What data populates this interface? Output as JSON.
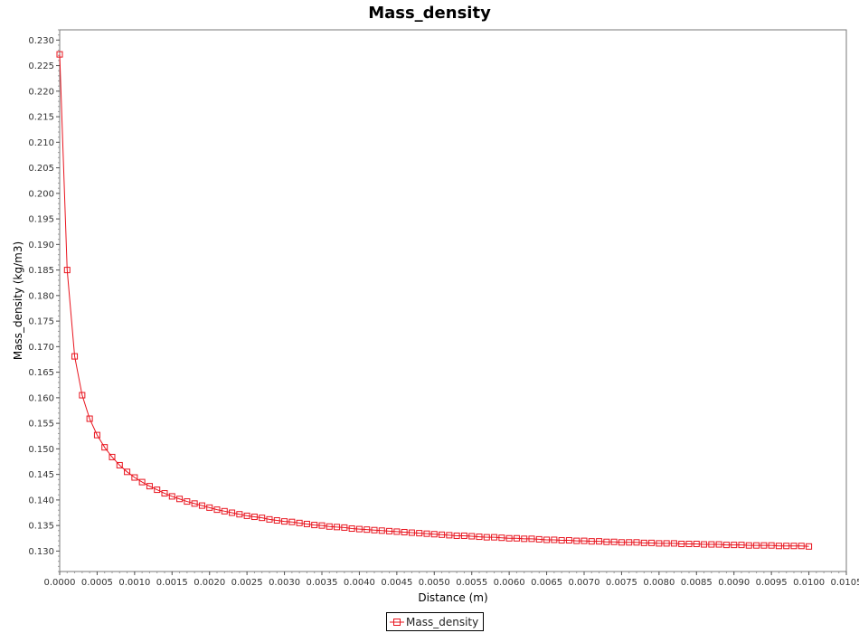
{
  "chart_data": {
    "type": "line",
    "title": "Mass_density",
    "xlabel": "Distance (m)",
    "ylabel": "Mass_density (kg/m3)",
    "xlim": [
      0,
      0.0105
    ],
    "ylim": [
      0.126,
      0.232
    ],
    "x_ticks": [
      "0.0000",
      "0.0005",
      "0.0010",
      "0.0015",
      "0.0020",
      "0.0025",
      "0.0030",
      "0.0035",
      "0.0040",
      "0.0045",
      "0.0050",
      "0.0055",
      "0.0060",
      "0.0065",
      "0.0070",
      "0.0075",
      "0.0080",
      "0.0085",
      "0.0090",
      "0.0095",
      "0.0100",
      "0.0105"
    ],
    "y_ticks": [
      "0.130",
      "0.135",
      "0.140",
      "0.145",
      "0.150",
      "0.155",
      "0.160",
      "0.165",
      "0.170",
      "0.175",
      "0.180",
      "0.185",
      "0.190",
      "0.195",
      "0.200",
      "0.205",
      "0.210",
      "0.215",
      "0.220",
      "0.225",
      "0.230"
    ],
    "legend_position": "bottom-center",
    "marker": "square",
    "series": [
      {
        "name": "Mass_density",
        "color": "#e8141e",
        "x": [
          0,
          0.0001,
          0.0002,
          0.0003,
          0.0004,
          0.0005,
          0.0006,
          0.0007,
          0.0008,
          0.0009,
          0.001,
          0.0011,
          0.0012,
          0.0013,
          0.0014,
          0.0015,
          0.0016,
          0.0017,
          0.0018,
          0.0019,
          0.002,
          0.0021,
          0.0022,
          0.0023,
          0.0024,
          0.0025,
          0.0026,
          0.0027,
          0.0028,
          0.0029,
          0.003,
          0.0031,
          0.0032,
          0.0033,
          0.0034,
          0.0035,
          0.0036,
          0.0037,
          0.0038,
          0.0039,
          0.004,
          0.0041,
          0.0042,
          0.0043,
          0.0044,
          0.0045,
          0.0046,
          0.0047,
          0.0048,
          0.0049,
          0.005,
          0.0051,
          0.0052,
          0.0053,
          0.0054,
          0.0055,
          0.0056,
          0.0057,
          0.0058,
          0.0059,
          0.006,
          0.0061,
          0.0062,
          0.0063,
          0.0064,
          0.0065,
          0.0066,
          0.0067,
          0.0068,
          0.0069,
          0.007,
          0.0071,
          0.0072,
          0.0073,
          0.0074,
          0.0075,
          0.0076,
          0.0077,
          0.0078,
          0.0079,
          0.008,
          0.0081,
          0.0082,
          0.0083,
          0.0084,
          0.0085,
          0.0086,
          0.0087,
          0.0088,
          0.0089,
          0.009,
          0.0091,
          0.0092,
          0.0093,
          0.0094,
          0.0095,
          0.0096,
          0.0097,
          0.0098,
          0.0099,
          0.01
        ],
        "values": [
          0.2272,
          0.185,
          0.1681,
          0.1605,
          0.1559,
          0.1527,
          0.1503,
          0.1484,
          0.1468,
          0.1455,
          0.1444,
          0.1435,
          0.1427,
          0.142,
          0.1413,
          0.1407,
          0.1402,
          0.1397,
          0.1393,
          0.1389,
          0.1385,
          0.1381,
          0.1378,
          0.1375,
          0.1372,
          0.1369,
          0.1367,
          0.1365,
          0.1362,
          0.136,
          0.1358,
          0.1357,
          0.1355,
          0.1353,
          0.1351,
          0.135,
          0.1348,
          0.1347,
          0.1346,
          0.1344,
          0.1343,
          0.1342,
          0.1341,
          0.134,
          0.1339,
          0.1338,
          0.1337,
          0.1336,
          0.1335,
          0.1334,
          0.1333,
          0.1332,
          0.1331,
          0.133,
          0.133,
          0.1329,
          0.1328,
          0.1327,
          0.1327,
          0.1326,
          0.1325,
          0.1325,
          0.1324,
          0.1324,
          0.1323,
          0.1322,
          0.1322,
          0.1321,
          0.1321,
          0.132,
          0.132,
          0.1319,
          0.1319,
          0.1318,
          0.1318,
          0.1317,
          0.1317,
          0.1317,
          0.1316,
          0.1316,
          0.1315,
          0.1315,
          0.1315,
          0.1314,
          0.1314,
          0.1314,
          0.1313,
          0.1313,
          0.1313,
          0.1312,
          0.1312,
          0.1312,
          0.1311,
          0.1311,
          0.1311,
          0.1311,
          0.131,
          0.131,
          0.131,
          0.131,
          0.1309
        ]
      }
    ]
  }
}
